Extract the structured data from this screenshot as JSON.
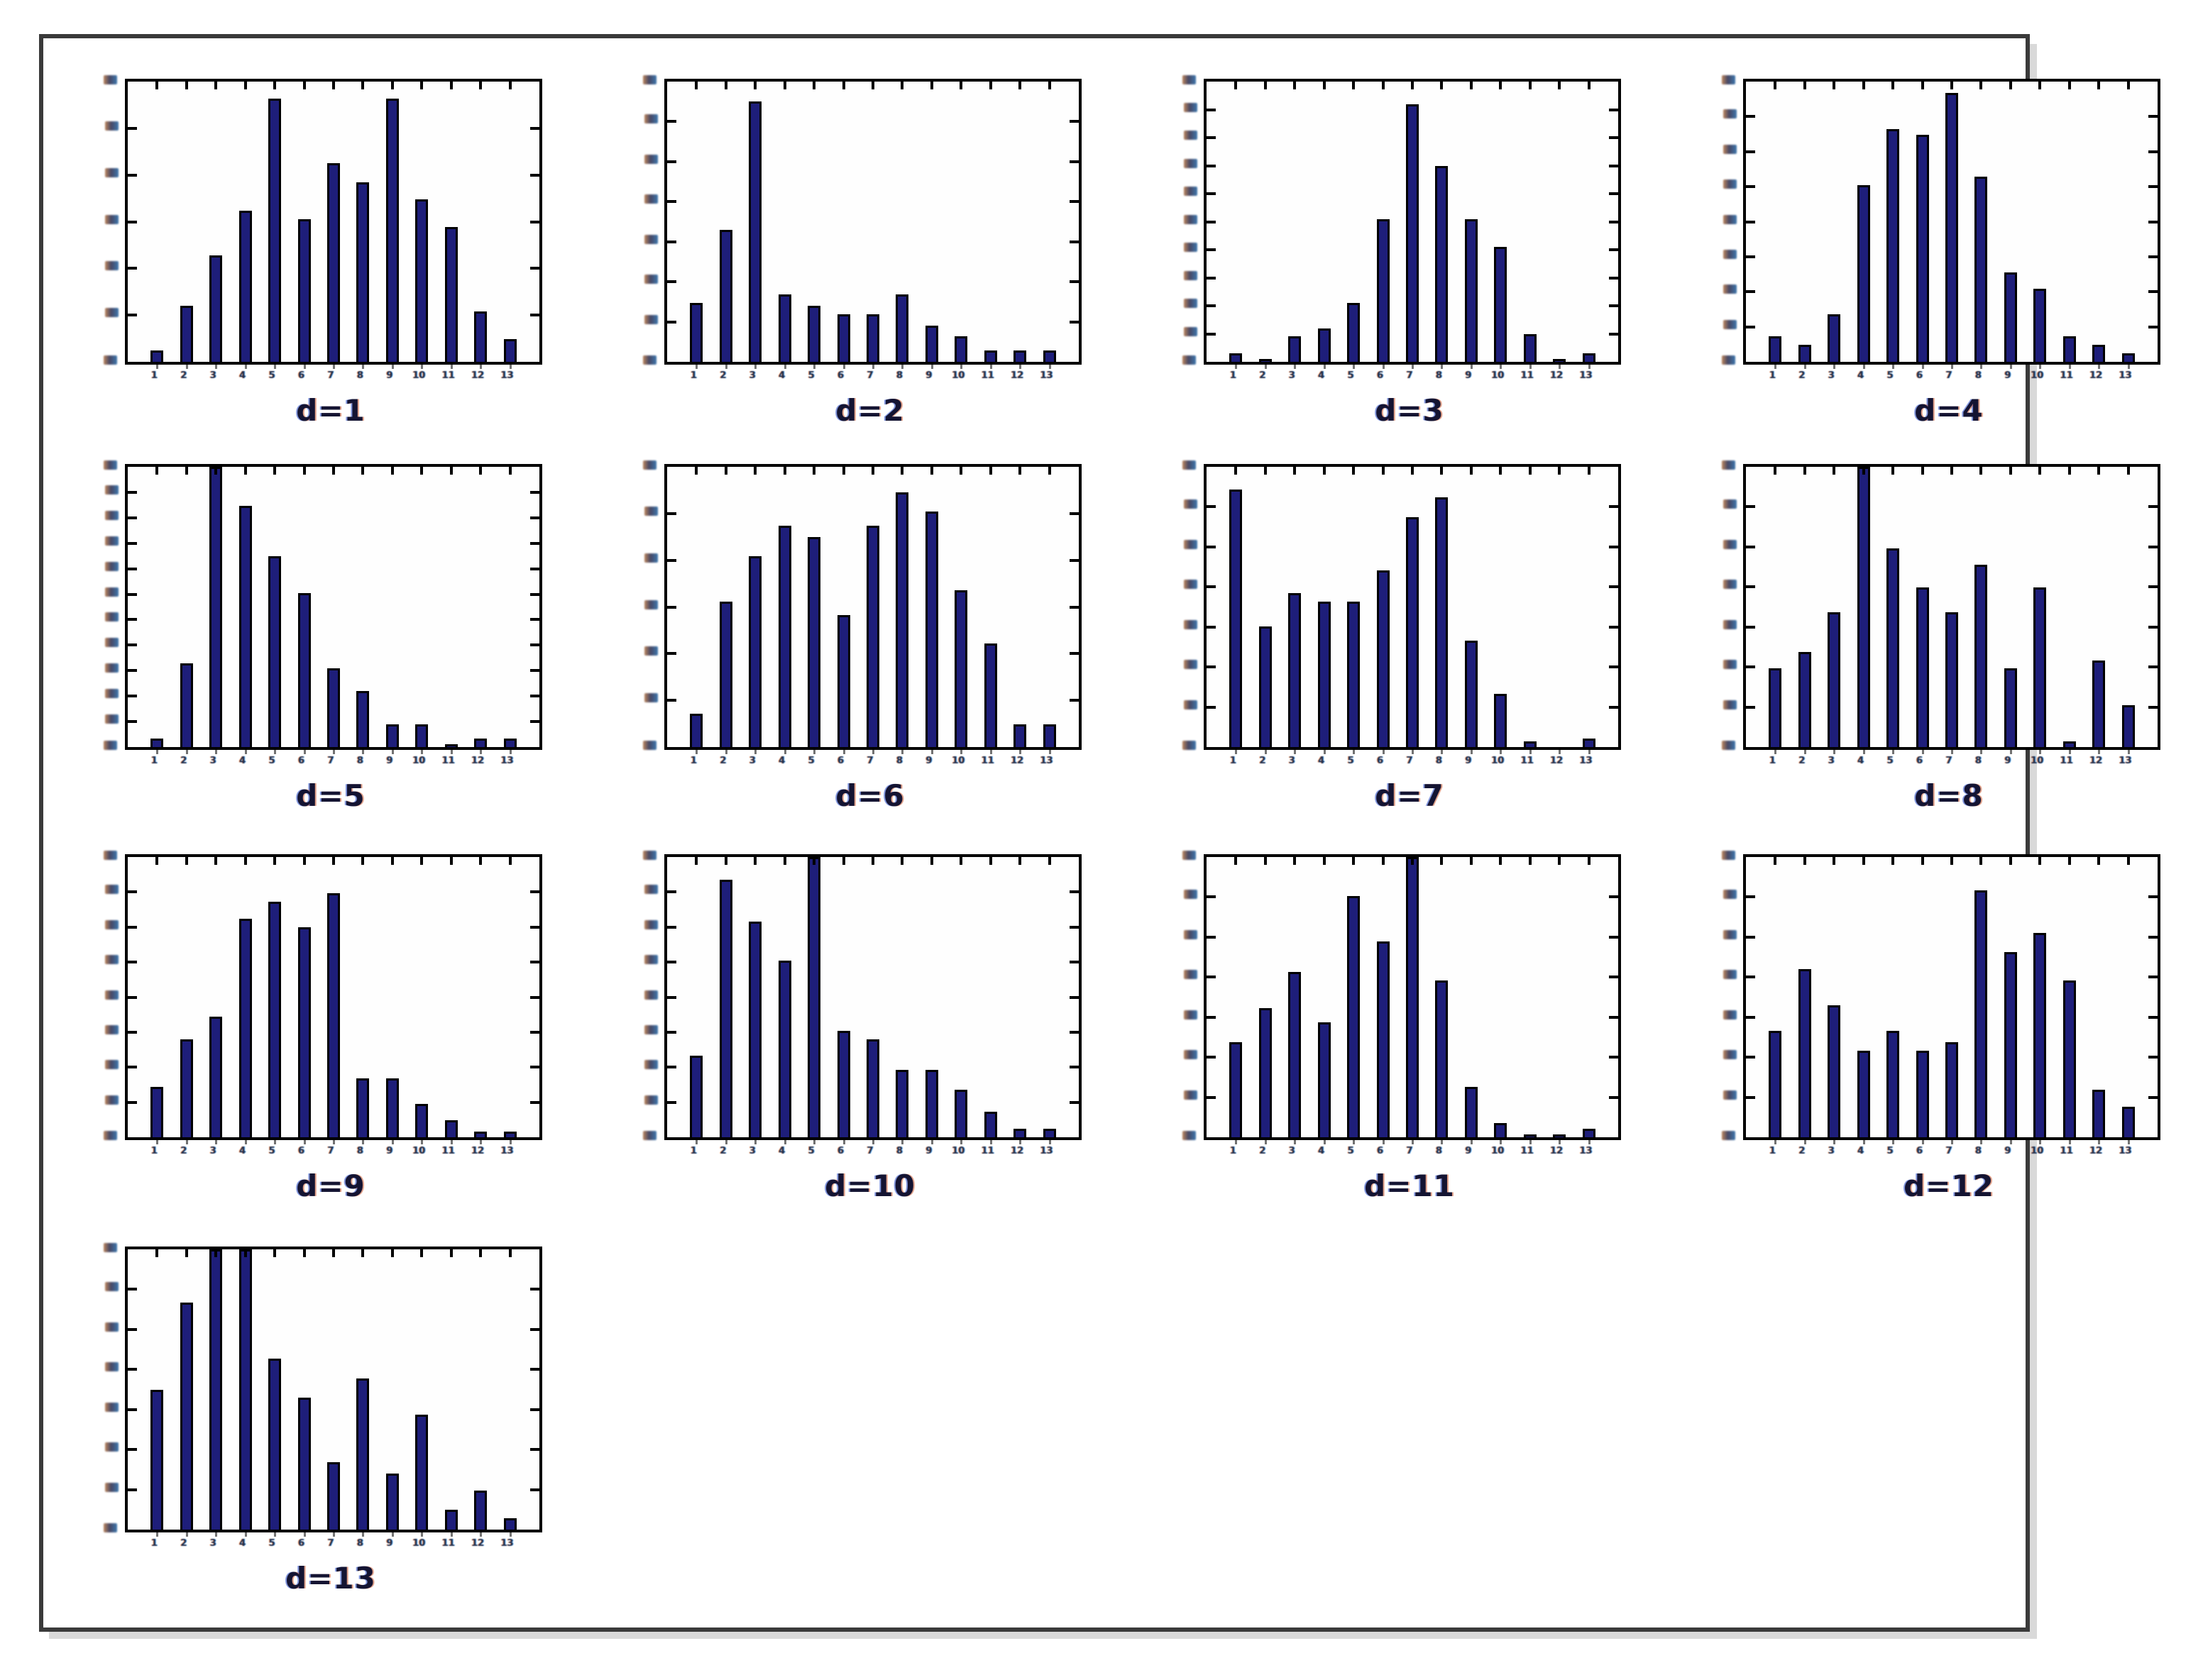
{
  "page": {
    "background": "#ffffff",
    "frame_color": "#3a3a3a",
    "shadow_color": "#d9d9d9"
  },
  "style": {
    "bar_fill": "#1e1e7a",
    "bar_edge": "#000000",
    "axis_color": "#000000"
  },
  "chart_data": [
    {
      "type": "bar",
      "title": "d=1",
      "categories": [
        1,
        2,
        3,
        4,
        5,
        6,
        7,
        8,
        9,
        10,
        11,
        12,
        13
      ],
      "values": [
        4,
        20,
        38,
        54,
        94,
        51,
        71,
        64,
        94,
        58,
        48,
        18,
        8
      ],
      "xlabel": "",
      "ylabel": "",
      "ylim": [
        0,
        100
      ],
      "grid": false,
      "y_ticks": 5
    },
    {
      "type": "bar",
      "title": "d=2",
      "categories": [
        1,
        2,
        3,
        4,
        5,
        6,
        7,
        8,
        9,
        10,
        11,
        12,
        13
      ],
      "values": [
        21,
        47,
        93,
        24,
        20,
        17,
        17,
        24,
        13,
        9,
        4,
        4,
        4
      ],
      "xlabel": "",
      "ylabel": "",
      "ylim": [
        0,
        100
      ],
      "grid": false,
      "y_ticks": 6
    },
    {
      "type": "bar",
      "title": "d=3",
      "categories": [
        1,
        2,
        3,
        4,
        5,
        6,
        7,
        8,
        9,
        10,
        11,
        12,
        13
      ],
      "values": [
        3,
        1,
        9,
        12,
        21,
        51,
        92,
        70,
        51,
        41,
        10,
        1,
        3
      ],
      "xlabel": "",
      "ylabel": "",
      "ylim": [
        0,
        100
      ],
      "grid": false,
      "y_ticks": 9
    },
    {
      "type": "bar",
      "title": "d=4",
      "categories": [
        1,
        2,
        3,
        4,
        5,
        6,
        7,
        8,
        9,
        10,
        11,
        12,
        13
      ],
      "values": [
        9,
        6,
        17,
        63,
        83,
        81,
        96,
        66,
        32,
        26,
        9,
        6,
        3
      ],
      "xlabel": "",
      "ylabel": "",
      "ylim": [
        0,
        100
      ],
      "grid": false,
      "y_ticks": 7
    },
    {
      "type": "bar",
      "title": "d=5",
      "categories": [
        1,
        2,
        3,
        4,
        5,
        6,
        7,
        8,
        9,
        10,
        11,
        12,
        13
      ],
      "values": [
        3,
        30,
        100,
        86,
        68,
        55,
        28,
        20,
        8,
        8,
        1,
        3,
        3
      ],
      "xlabel": "",
      "ylabel": "",
      "ylim": [
        0,
        100
      ],
      "grid": false,
      "y_ticks": 10
    },
    {
      "type": "bar",
      "title": "d=6",
      "categories": [
        1,
        2,
        3,
        4,
        5,
        6,
        7,
        8,
        9,
        10,
        11,
        12,
        13
      ],
      "values": [
        12,
        52,
        68,
        79,
        75,
        47,
        79,
        91,
        84,
        56,
        37,
        8,
        8
      ],
      "xlabel": "",
      "ylabel": "",
      "ylim": [
        0,
        100
      ],
      "grid": false,
      "y_ticks": 5
    },
    {
      "type": "bar",
      "title": "d=7",
      "categories": [
        1,
        2,
        3,
        4,
        5,
        6,
        7,
        8,
        9,
        10,
        11,
        12,
        13
      ],
      "values": [
        92,
        43,
        55,
        52,
        52,
        63,
        82,
        89,
        38,
        19,
        2,
        0,
        3
      ],
      "xlabel": "",
      "ylabel": "",
      "ylim": [
        0,
        100
      ],
      "grid": false,
      "y_ticks": 6
    },
    {
      "type": "bar",
      "title": "d=8",
      "categories": [
        1,
        2,
        3,
        4,
        5,
        6,
        7,
        8,
        9,
        10,
        11,
        12,
        13
      ],
      "values": [
        28,
        34,
        48,
        100,
        71,
        57,
        48,
        65,
        28,
        57,
        2,
        31,
        15
      ],
      "xlabel": "",
      "ylabel": "",
      "ylim": [
        0,
        100
      ],
      "grid": false,
      "y_ticks": 6
    },
    {
      "type": "bar",
      "title": "d=9",
      "categories": [
        1,
        2,
        3,
        4,
        5,
        6,
        7,
        8,
        9,
        10,
        11,
        12,
        13
      ],
      "values": [
        18,
        35,
        43,
        78,
        84,
        75,
        87,
        21,
        21,
        12,
        6,
        2,
        2
      ],
      "xlabel": "",
      "ylabel": "",
      "ylim": [
        0,
        100
      ],
      "grid": false,
      "y_ticks": 7
    },
    {
      "type": "bar",
      "title": "d=10",
      "categories": [
        1,
        2,
        3,
        4,
        5,
        6,
        7,
        8,
        9,
        10,
        11,
        12,
        13
      ],
      "values": [
        29,
        92,
        77,
        63,
        100,
        38,
        35,
        24,
        24,
        17,
        9,
        3,
        3
      ],
      "xlabel": "",
      "ylabel": "",
      "ylim": [
        0,
        100
      ],
      "grid": false,
      "y_ticks": 7
    },
    {
      "type": "bar",
      "title": "d=11",
      "categories": [
        1,
        2,
        3,
        4,
        5,
        6,
        7,
        8,
        9,
        10,
        11,
        12,
        13
      ],
      "values": [
        34,
        46,
        59,
        41,
        86,
        70,
        100,
        56,
        18,
        5,
        1,
        1,
        3
      ],
      "xlabel": "",
      "ylabel": "",
      "ylim": [
        0,
        100
      ],
      "grid": false,
      "y_ticks": 6
    },
    {
      "type": "bar",
      "title": "d=12",
      "categories": [
        1,
        2,
        3,
        4,
        5,
        6,
        7,
        8,
        9,
        10,
        11,
        12,
        13
      ],
      "values": [
        38,
        60,
        47,
        31,
        38,
        31,
        34,
        88,
        66,
        73,
        56,
        17,
        11
      ],
      "xlabel": "",
      "ylabel": "",
      "ylim": [
        0,
        100
      ],
      "grid": false,
      "y_ticks": 6
    },
    {
      "type": "bar",
      "title": "d=13",
      "categories": [
        1,
        2,
        3,
        4,
        5,
        6,
        7,
        8,
        9,
        10,
        11,
        12,
        13
      ],
      "values": [
        50,
        81,
        100,
        100,
        61,
        47,
        24,
        54,
        20,
        41,
        7,
        14,
        4
      ],
      "xlabel": "",
      "ylabel": "",
      "ylim": [
        0,
        100
      ],
      "grid": false,
      "y_ticks": 6
    }
  ]
}
